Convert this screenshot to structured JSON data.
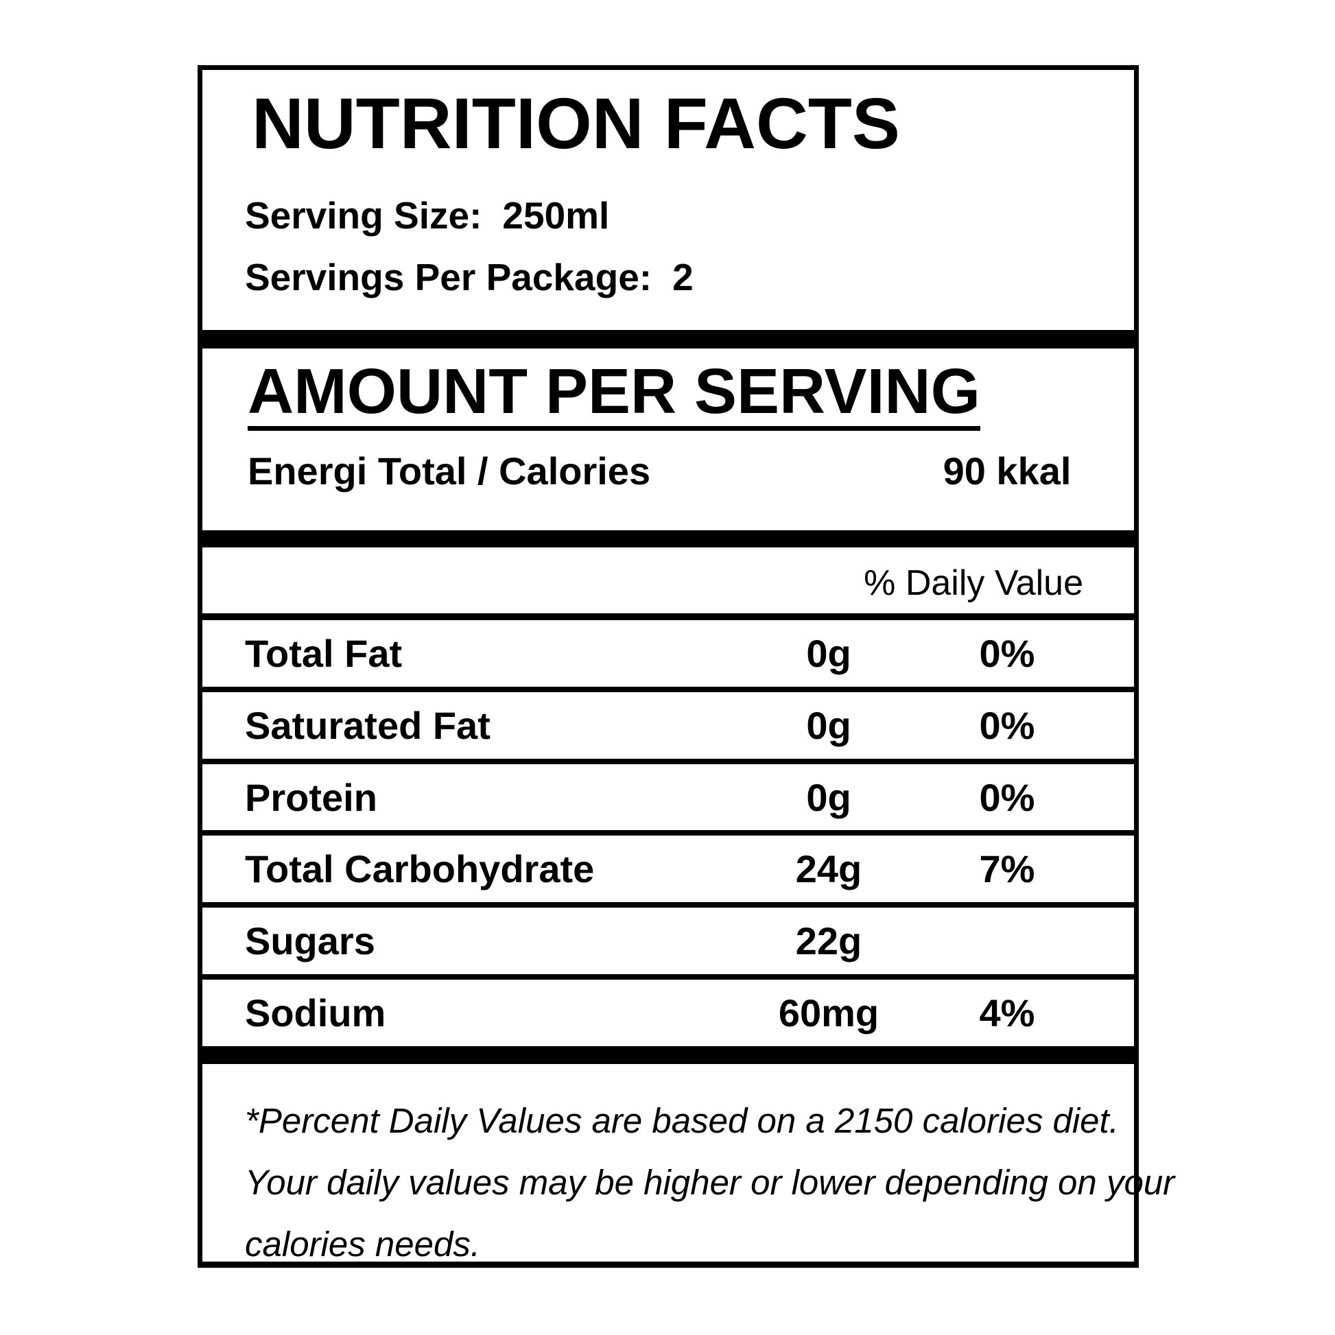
{
  "colors": {
    "ink": "#000000",
    "paper": "#ffffff"
  },
  "label": {
    "title": "NUTRITION FACTS",
    "serving_size": {
      "label": "Serving Size:",
      "value": "250ml"
    },
    "servings_per_package": {
      "label": "Servings Per Package:",
      "value": "2"
    },
    "amount_per_serving": {
      "heading": "AMOUNT PER SERVING",
      "energy": {
        "label": "Energi Total / Calories",
        "value": "90 kkal"
      }
    },
    "table": {
      "daily_value_header": "% Daily Value",
      "rows": [
        {
          "label": "Total Fat",
          "amount": "0g",
          "percent": "0%"
        },
        {
          "label": "Saturated Fat",
          "amount": "0g",
          "percent": "0%"
        },
        {
          "label": "Protein",
          "amount": "0g",
          "percent": "0%"
        },
        {
          "label": "Total Carbohydrate",
          "amount": "24g",
          "percent": "7%"
        },
        {
          "label": "Sugars",
          "amount": "22g",
          "percent": ""
        },
        {
          "label": "Sodium",
          "amount": "60mg",
          "percent": "4%"
        }
      ]
    },
    "footnote": {
      "lines": [
        "*Percent Daily Values are based on a 2150 calories diet.",
        "Your daily values may be higher or lower depending on your",
        "calories needs."
      ]
    }
  }
}
